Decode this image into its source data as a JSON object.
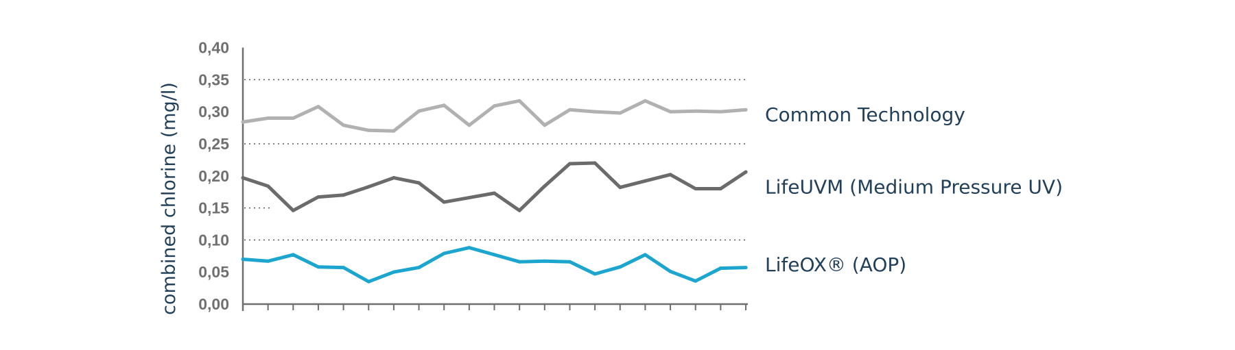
{
  "chart_data": {
    "type": "line",
    "ylabel": "combined chlorine (mg/l)",
    "xlabel": "",
    "ylim": [
      0,
      0.4
    ],
    "yticks": [
      0,
      0.05,
      0.1,
      0.15,
      0.2,
      0.25,
      0.3,
      0.35,
      0.4
    ],
    "ytick_labels": [
      "0,00",
      "0,05",
      "0,10",
      "0,15",
      "0,20",
      "0,25",
      "0,30",
      "0,35",
      "0,40"
    ],
    "dashed_gridlines": [
      0.1,
      0.15,
      0.25,
      0.35
    ],
    "x": [
      1,
      2,
      3,
      4,
      5,
      6,
      7,
      8,
      9,
      10,
      11,
      12,
      13,
      14,
      15,
      16,
      17,
      18,
      19,
      20,
      21
    ],
    "legend": "inline-right",
    "series": [
      {
        "name": "Common Technology",
        "color": "#b1b1b1",
        "values": [
          0.284,
          0.29,
          0.29,
          0.308,
          0.279,
          0.271,
          0.27,
          0.301,
          0.31,
          0.279,
          0.309,
          0.317,
          0.279,
          0.303,
          0.3,
          0.298,
          0.317,
          0.3,
          0.301,
          0.3,
          0.303
        ]
      },
      {
        "name": "LifeUVM (Medium Pressure UV)",
        "color": "#6b6b6b",
        "values": [
          0.197,
          0.184,
          0.146,
          0.167,
          0.17,
          0.183,
          0.197,
          0.189,
          0.159,
          0.166,
          0.173,
          0.146,
          0.184,
          0.219,
          0.22,
          0.182,
          0.192,
          0.202,
          0.18,
          0.18,
          0.206
        ]
      },
      {
        "name": "LifeOX® (AOP)",
        "color": "#1ca6cf",
        "values": [
          0.07,
          0.067,
          0.077,
          0.058,
          0.057,
          0.035,
          0.05,
          0.057,
          0.079,
          0.088,
          0.077,
          0.066,
          0.067,
          0.066,
          0.047,
          0.058,
          0.077,
          0.051,
          0.036,
          0.056,
          0.057
        ]
      }
    ]
  }
}
